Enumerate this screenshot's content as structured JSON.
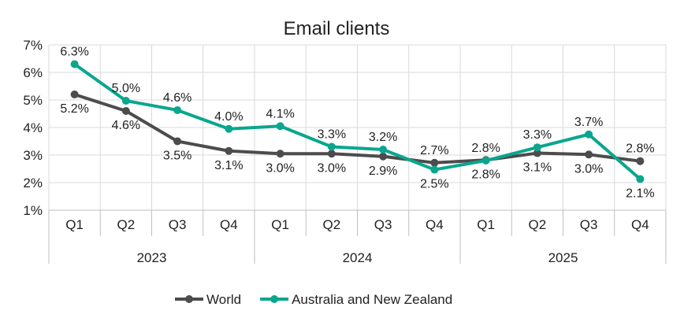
{
  "chart_data": {
    "type": "line",
    "title": "Email clients",
    "quarters": [
      "Q1",
      "Q2",
      "Q3",
      "Q4",
      "Q1",
      "Q2",
      "Q3",
      "Q4",
      "Q1",
      "Q2",
      "Q3",
      "Q4"
    ],
    "years": [
      "2023",
      "2024",
      "2025"
    ],
    "yticks": [
      "1%",
      "2%",
      "3%",
      "4%",
      "5%",
      "6%",
      "7%"
    ],
    "ylim": [
      1,
      7
    ],
    "grid": true,
    "legend_position": "bottom",
    "series": [
      {
        "name": "World",
        "color": "#4d4b4c",
        "values": [
          5.2,
          4.6,
          3.5,
          3.15,
          3.05,
          3.05,
          2.95,
          2.72,
          2.82,
          3.07,
          3.02,
          2.78
        ],
        "labels": [
          "5.2%",
          "4.6%",
          "3.5%",
          "3.1%",
          "3.0%",
          "3.0%",
          "2.9%",
          "2.7%",
          "2.8%",
          "3.1%",
          "3.0%",
          "2.8%"
        ],
        "label_pos": [
          "below",
          "below",
          "below",
          "below",
          "below",
          "below",
          "below",
          "above",
          "below",
          "below",
          "below",
          "above"
        ]
      },
      {
        "name": "Australia and New Zealand",
        "color": "#0aa68e",
        "values": [
          6.3,
          4.97,
          4.63,
          3.95,
          4.05,
          3.3,
          3.2,
          2.47,
          2.8,
          3.28,
          3.75,
          2.13
        ],
        "labels": [
          "6.3%",
          "5.0%",
          "4.6%",
          "4.0%",
          "4.1%",
          "3.3%",
          "3.2%",
          "2.5%",
          "2.8%",
          "3.3%",
          "3.7%",
          "2.1%"
        ],
        "label_pos": [
          "above",
          "above",
          "above",
          "above",
          "above",
          "above",
          "above",
          "below",
          "above",
          "above",
          "above",
          "below"
        ]
      }
    ]
  }
}
